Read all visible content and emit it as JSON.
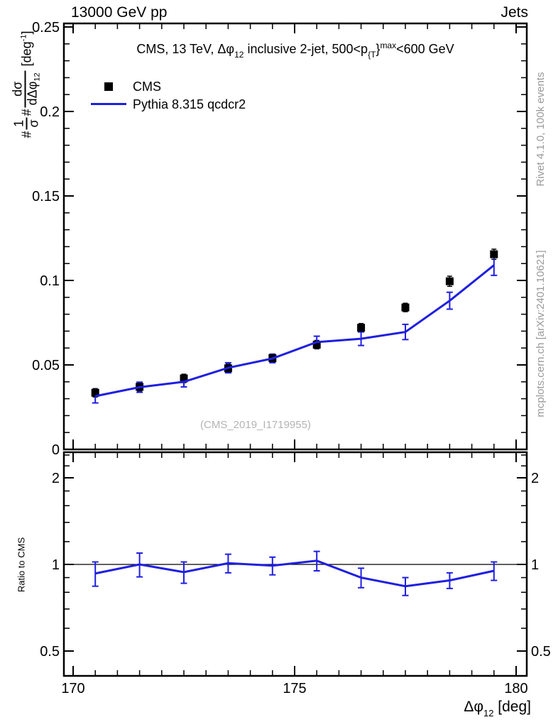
{
  "header": {
    "left": "13000 GeV pp",
    "right": "Jets"
  },
  "title": {
    "pre": "CMS, 13 TeV, ",
    "phi": "Δφ",
    "phi_sub": "12",
    "mid": " inclusive 2-jet, 500<p",
    "p_sub": "{T",
    "brace": "}",
    "p_sup": "max",
    "post": "<600 GeV"
  },
  "legend": {
    "entries": [
      {
        "label": "CMS",
        "marker": "square",
        "color": "#000000"
      },
      {
        "label": "Pythia 8.315 qcdcr2",
        "marker": "line",
        "color": "#1f1fe0"
      }
    ]
  },
  "ylabel": {
    "hash1": "#",
    "frac1_num": "1",
    "frac1_den": "σ",
    "hash2": "#",
    "frac2_num": "dσ",
    "frac2_den": "dΔφ",
    "frac2_den_sub": "12",
    "units_open": "[deg",
    "units_exp": "-1",
    "units_close": "]"
  },
  "ratio_ylabel": "Ratio to CMS",
  "xlabel": {
    "sym": "Δφ",
    "sub": "12",
    "units": " [deg]"
  },
  "watermark": "(CMS_2019_I1719955)",
  "side_notes": {
    "top_right": "Rivet 4.1.0,  100k events",
    "bottom_right": "mcplots.cern.ch [arXiv:2401.10621]"
  },
  "chart_data": {
    "type": "line",
    "title": "CMS, 13 TeV, Δφ_12 inclusive 2-jet, 500<p_T^max<600 GeV",
    "xlabel": "Δφ_12 [deg]",
    "ylabel": "1/σ dσ/dΔφ_12 [deg^-1]",
    "xlim": [
      169.8,
      180.24
    ],
    "main_ylim": [
      0,
      0.2521
    ],
    "ratio_ylim": [
      0.41,
      2.45
    ],
    "ratio_yscale": "log",
    "grid": false,
    "legend_position": "top-left",
    "x": [
      170.5,
      171.5,
      172.5,
      173.5,
      174.5,
      175.5,
      176.5,
      177.5,
      178.5,
      179.5
    ],
    "series": [
      {
        "name": "CMS",
        "style": "scatter-square",
        "color": "#000000",
        "values": [
          0.0335,
          0.037,
          0.042,
          0.048,
          0.054,
          0.062,
          0.072,
          0.084,
          0.0995,
          0.1155
        ],
        "errors": [
          0.0025,
          0.0025,
          0.0025,
          0.0025,
          0.0025,
          0.0025,
          0.0025,
          0.0025,
          0.003,
          0.003
        ]
      },
      {
        "name": "Pythia 8.315 qcdcr2",
        "style": "line",
        "color": "#1f1fe0",
        "values": [
          0.0315,
          0.0368,
          0.04,
          0.0483,
          0.0538,
          0.0635,
          0.0655,
          0.0695,
          0.088,
          0.109
        ],
        "errors": [
          0.004,
          0.003,
          0.003,
          0.003,
          0.0025,
          0.0035,
          0.004,
          0.0045,
          0.005,
          0.006
        ]
      }
    ],
    "ratio": {
      "label": "Ratio to CMS",
      "reference": 1,
      "values": [
        0.93,
        1.0,
        0.94,
        1.01,
        0.99,
        1.03,
        0.9,
        0.84,
        0.88,
        0.95
      ],
      "errors": [
        0.09,
        0.095,
        0.08,
        0.075,
        0.07,
        0.08,
        0.07,
        0.06,
        0.055,
        0.07
      ]
    },
    "axes": {
      "y_major": [
        0,
        0.05,
        0.1,
        0.15,
        0.2,
        0.25
      ],
      "y_major_labels": [
        "0",
        "0.05",
        "0.1",
        "0.15",
        "0.2",
        "0.25"
      ],
      "y_minor_step": 0.01,
      "x_major": [
        170,
        175,
        180
      ],
      "x_major_labels": [
        "170",
        "175",
        "180"
      ],
      "x_minor_step": 0.5,
      "ratio_major": [
        0.5,
        1,
        2
      ],
      "ratio_major_labels": [
        "0.5",
        "1",
        "2"
      ],
      "ratio_minor": [
        0.6,
        0.7,
        0.8,
        0.9,
        1.2,
        1.4,
        1.6,
        1.8,
        2.2,
        2.4
      ]
    }
  }
}
